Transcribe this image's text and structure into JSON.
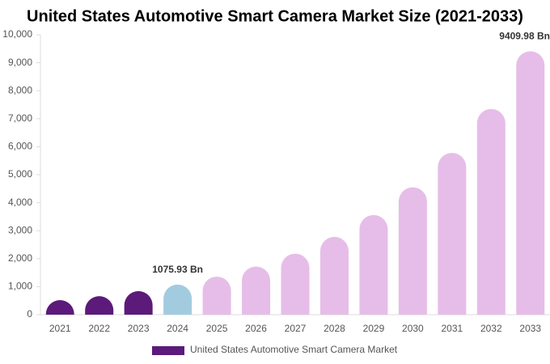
{
  "chart_data": {
    "type": "bar",
    "title": "United States Automotive Smart Camera Market Size (2021-2033)",
    "categories": [
      "2021",
      "2022",
      "2023",
      "2024",
      "2025",
      "2026",
      "2027",
      "2028",
      "2029",
      "2030",
      "2031",
      "2032",
      "2033"
    ],
    "series": [
      {
        "name": "United States Automotive Smart Camera Market",
        "color": "#5c1a7a",
        "values": [
          520,
          660,
          840,
          1075.93,
          1360,
          1720,
          2180,
          2780,
          3560,
          4550,
          5780,
          7350,
          9409.98
        ],
        "value_labels": [
          null,
          null,
          null,
          "1075.93 Bn",
          null,
          null,
          null,
          null,
          null,
          null,
          null,
          null,
          "9409.98 Bn"
        ],
        "colors": [
          "#5c1a7a",
          "#5c1a7a",
          "#5c1a7a",
          "#a3cbe0",
          "#e6bde8",
          "#e6bde8",
          "#e6bde8",
          "#e6bde8",
          "#e6bde8",
          "#e6bde8",
          "#e6bde8",
          "#e6bde8",
          "#e6bde8"
        ]
      }
    ],
    "ylim": [
      0,
      10000
    ],
    "yticks": [
      0,
      {
        "value": 1000,
        "label": "1,000"
      },
      {
        "value": 2000,
        "label": "2,000"
      },
      {
        "value": 3000,
        "label": "3,000"
      },
      {
        "value": 4000,
        "label": "4,000"
      },
      {
        "value": 5000,
        "label": "5,000"
      },
      {
        "value": 6000,
        "label": "6,000"
      },
      {
        "value": 7000,
        "label": "7,000"
      },
      {
        "value": 8000,
        "label": "8,000"
      },
      {
        "value": 9000,
        "label": "9,000"
      },
      {
        "value": 10000,
        "label": "10,000"
      }
    ],
    "grid": false,
    "legend": "bottom"
  }
}
